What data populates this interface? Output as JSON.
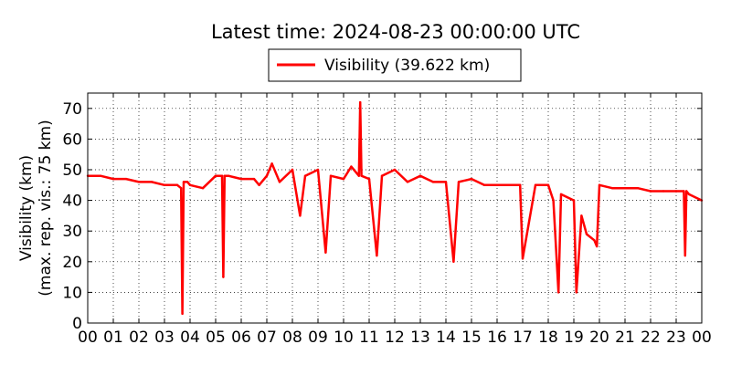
{
  "chart_data": {
    "type": "line",
    "title": "Latest time: 2024-08-23 00:00:00 UTC",
    "ylabel_line1": "Visibility (km)",
    "ylabel_line2": "(max. rep. vis.: 75 km)",
    "xlabel": "",
    "xlim": [
      0,
      24
    ],
    "ylim": [
      0,
      75
    ],
    "x_ticks": [
      "00",
      "01",
      "02",
      "03",
      "04",
      "05",
      "06",
      "07",
      "08",
      "09",
      "10",
      "11",
      "12",
      "13",
      "14",
      "15",
      "16",
      "17",
      "18",
      "19",
      "20",
      "21",
      "22",
      "23",
      "00"
    ],
    "y_ticks": [
      0,
      10,
      20,
      30,
      40,
      50,
      60,
      70
    ],
    "grid": true,
    "legend_position": "top-center",
    "series": [
      {
        "name": "Visibility (39.622 km)",
        "color": "#ff0000",
        "x": [
          0,
          0.5,
          1,
          1.5,
          2,
          2.5,
          3,
          3.5,
          3.65,
          3.7,
          3.75,
          3.9,
          4,
          4.5,
          5,
          5.25,
          5.3,
          5.35,
          5.5,
          6,
          6.5,
          6.7,
          7,
          7.2,
          7.5,
          8,
          8.3,
          8.5,
          9,
          9.3,
          9.5,
          10,
          10.3,
          10.6,
          10.65,
          10.7,
          11,
          11.3,
          11.5,
          12,
          12.5,
          13,
          13.5,
          14,
          14.3,
          14.5,
          15,
          15.5,
          16,
          16.5,
          16.9,
          17,
          17.5,
          18,
          18.2,
          18.4,
          18.5,
          19,
          19.1,
          19.3,
          19.5,
          19.8,
          19.9,
          20,
          20.5,
          21,
          21.5,
          22,
          22.5,
          23,
          23.3,
          23.35,
          23.4,
          23.5,
          24
        ],
        "values": [
          48,
          48,
          47,
          47,
          46,
          46,
          45,
          45,
          44,
          3,
          46,
          46,
          45,
          44,
          48,
          48,
          15,
          48,
          48,
          47,
          47,
          45,
          48,
          52,
          46,
          50,
          35,
          48,
          50,
          23,
          48,
          47,
          51,
          48,
          72,
          48,
          47,
          22,
          48,
          50,
          46,
          48,
          46,
          46,
          20,
          46,
          47,
          45,
          45,
          45,
          45,
          21,
          45,
          45,
          40,
          10,
          42,
          40,
          10,
          35,
          29,
          27,
          25,
          45,
          44,
          44,
          44,
          43,
          43,
          43,
          43,
          22,
          43,
          42,
          40
        ]
      }
    ]
  }
}
